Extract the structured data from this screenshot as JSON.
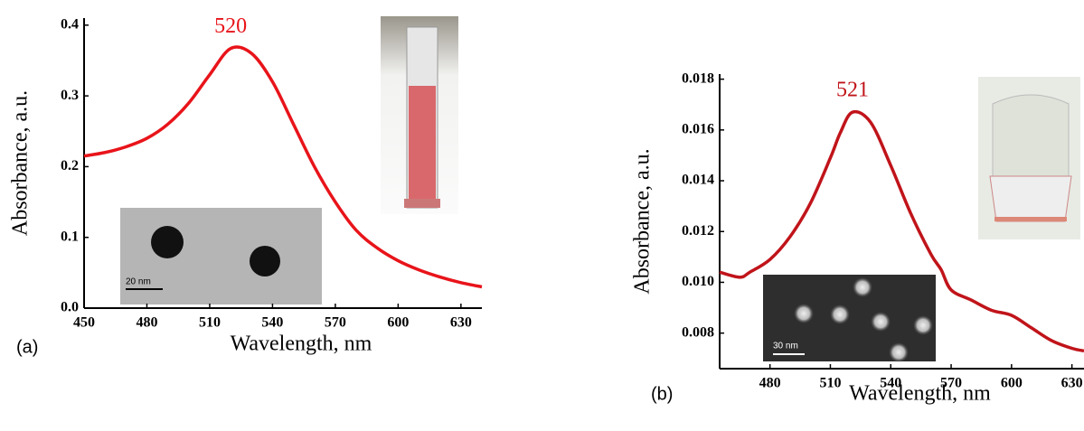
{
  "chart_data": [
    {
      "type": "line",
      "panel_label": "(a)",
      "x_label": "Wavelength, nm",
      "y_label": "Absorbance, a.u.",
      "peak_label": "520",
      "inset_scale_label": "20 nm",
      "color": "#e8141a",
      "x": [
        450,
        460,
        470,
        480,
        490,
        500,
        510,
        520,
        530,
        540,
        550,
        560,
        570,
        580,
        590,
        600,
        610,
        620,
        630,
        640
      ],
      "values": [
        0.215,
        0.22,
        0.228,
        0.24,
        0.26,
        0.29,
        0.33,
        0.367,
        0.36,
        0.32,
        0.26,
        0.2,
        0.15,
        0.11,
        0.085,
        0.067,
        0.054,
        0.044,
        0.036,
        0.03
      ],
      "xlim": [
        450,
        640
      ],
      "xticks": [
        450,
        480,
        510,
        540,
        570,
        600,
        630
      ],
      "ylim": [
        0,
        0.41
      ],
      "yticks": [
        {
          "value": 0,
          "label": "0.0"
        },
        0.1,
        0.2,
        0.3,
        0.4
      ]
    },
    {
      "type": "line",
      "panel_label": "(b)",
      "x_label": "Wavelength, nm",
      "y_label": "Absorbance, a.u.",
      "peak_label": "521",
      "inset_scale_label": "30 nm",
      "color": "#c0141a",
      "x": [
        455,
        465,
        470,
        480,
        490,
        500,
        510,
        515,
        521,
        530,
        540,
        550,
        560,
        565,
        570,
        580,
        590,
        600,
        610,
        620,
        630,
        636
      ],
      "values": [
        0.0104,
        0.0102,
        0.0104,
        0.0109,
        0.0118,
        0.0131,
        0.0149,
        0.0159,
        0.0167,
        0.0163,
        0.0146,
        0.0127,
        0.0111,
        0.0105,
        0.0097,
        0.0093,
        0.0089,
        0.0087,
        0.0082,
        0.0077,
        0.0074,
        0.0073
      ],
      "xlim": [
        455,
        636
      ],
      "xticks": [
        480,
        510,
        540,
        570,
        600,
        630
      ],
      "ylim": [
        0.0066,
        0.0182
      ],
      "yticks": [
        0.008,
        {
          "value": 0.01,
          "label": "0.010"
        },
        0.012,
        0.014,
        0.016,
        0.018
      ]
    }
  ]
}
